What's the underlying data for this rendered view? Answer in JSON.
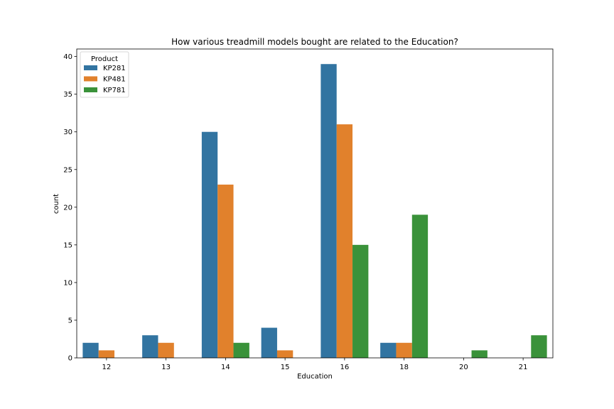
{
  "chart_data": {
    "type": "bar",
    "title": "How various treadmill models bought are related to the Education?",
    "xlabel": "Education",
    "ylabel": "count",
    "categories": [
      "12",
      "13",
      "14",
      "15",
      "16",
      "18",
      "20",
      "21"
    ],
    "series": [
      {
        "name": "KP281",
        "color": "#3274a1",
        "values": [
          2,
          3,
          30,
          4,
          39,
          2,
          0,
          0
        ]
      },
      {
        "name": "KP481",
        "color": "#e1812c",
        "values": [
          1,
          2,
          23,
          1,
          31,
          2,
          0,
          0
        ]
      },
      {
        "name": "KP781",
        "color": "#3a923a",
        "values": [
          0,
          0,
          2,
          0,
          15,
          19,
          1,
          3
        ]
      }
    ],
    "yticks": [
      0,
      5,
      10,
      15,
      20,
      25,
      30,
      35,
      40
    ],
    "ylim": [
      0,
      41
    ],
    "grid": false,
    "legend": {
      "title": "Product",
      "placement": "top-left"
    }
  }
}
